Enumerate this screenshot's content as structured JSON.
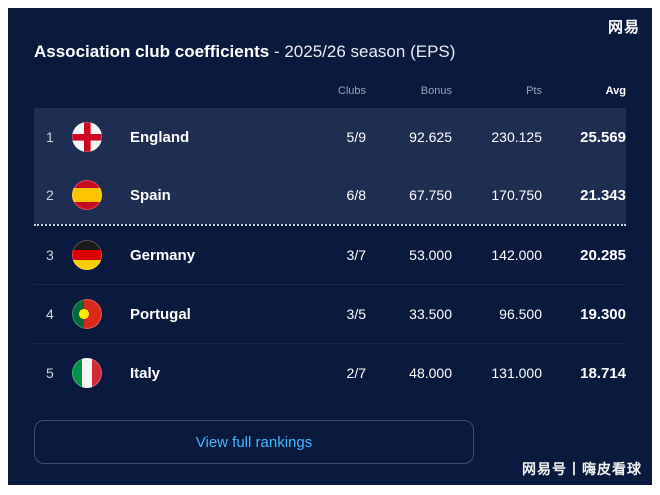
{
  "watermarks": {
    "top_right": "网易",
    "bottom_right": "网易号丨嗨皮看球"
  },
  "header": {
    "title": "Association club coefficients",
    "subtitle": "- 2025/26 season (EPS)"
  },
  "table": {
    "columns": {
      "clubs": "Clubs",
      "bonus": "Bonus",
      "pts": "Pts",
      "avg": "Avg"
    },
    "rows": [
      {
        "rank": "1",
        "country": "England",
        "clubs": "5/9",
        "bonus": "92.625",
        "pts": "230.125",
        "avg": "25.569"
      },
      {
        "rank": "2",
        "country": "Spain",
        "clubs": "6/8",
        "bonus": "67.750",
        "pts": "170.750",
        "avg": "21.343"
      },
      {
        "rank": "3",
        "country": "Germany",
        "clubs": "3/7",
        "bonus": "53.000",
        "pts": "142.000",
        "avg": "20.285"
      },
      {
        "rank": "4",
        "country": "Portugal",
        "clubs": "3/5",
        "bonus": "33.500",
        "pts": "96.500",
        "avg": "19.300"
      },
      {
        "rank": "5",
        "country": "Italy",
        "clubs": "2/7",
        "bonus": "48.000",
        "pts": "131.000",
        "avg": "18.714"
      }
    ]
  },
  "button": {
    "label": "View full rankings"
  },
  "colors": {
    "frame": "#ffffff",
    "background": "#0a1a3e",
    "row_highlight": "#1e2d52",
    "accent_blue": "#41b6ff",
    "cutoff_line": "#ccd3e0"
  }
}
